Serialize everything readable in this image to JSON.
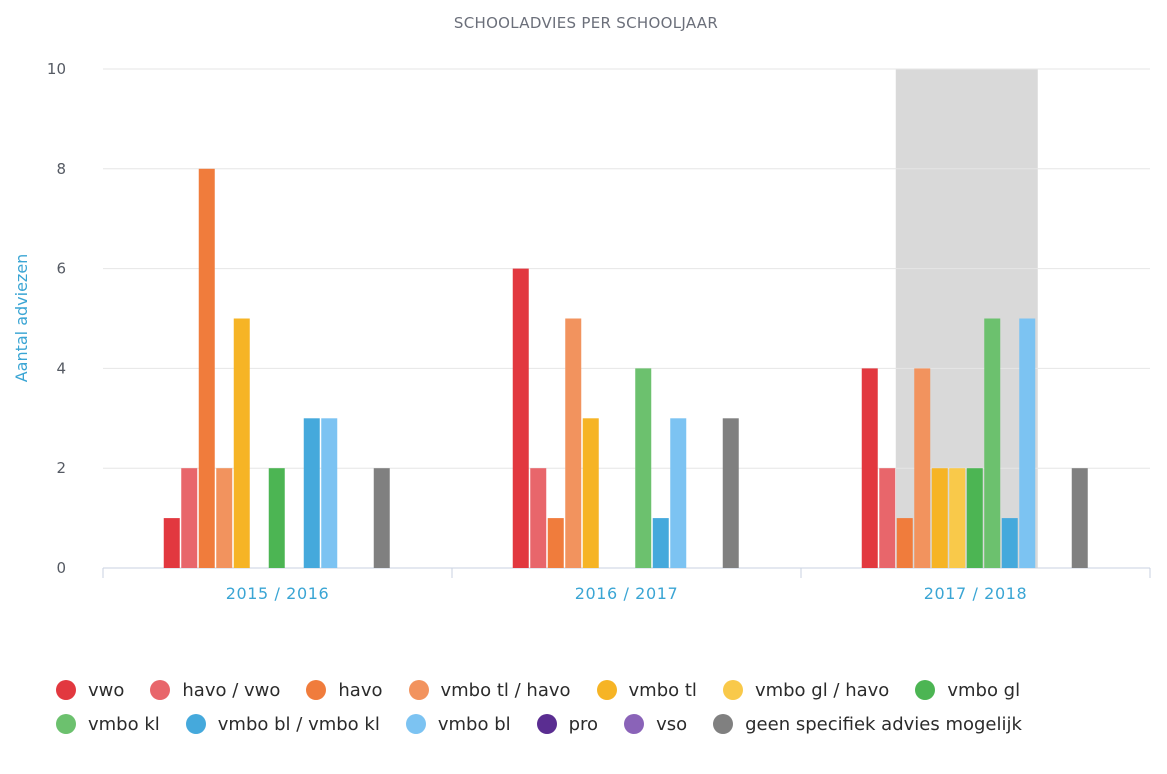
{
  "chart_data": {
    "type": "bar",
    "title": "SCHOOLADVIES PER SCHOOLJAAR",
    "xlabel": "",
    "ylabel": "Aantal adviezen",
    "ylim": [
      0,
      10
    ],
    "yticks": [
      "0",
      "2",
      "4",
      "6",
      "8",
      "10"
    ],
    "categories": [
      "2015 / 2016",
      "2016 / 2017",
      "2017 / 2018"
    ],
    "highlighted_category": "2017 / 2018",
    "highlight_color": "#d9d9d9",
    "grid": true,
    "legend_position": "bottom",
    "series": [
      {
        "name": "vwo",
        "color": "#e2383f",
        "values": [
          1,
          6,
          4
        ]
      },
      {
        "name": "havo / vwo",
        "color": "#e8666b",
        "values": [
          2,
          2,
          2
        ]
      },
      {
        "name": "havo",
        "color": "#f07c3c",
        "values": [
          8,
          1,
          1
        ]
      },
      {
        "name": "vmbo tl / havo",
        "color": "#f2935e",
        "values": [
          2,
          5,
          4
        ]
      },
      {
        "name": "vmbo tl",
        "color": "#f6b425",
        "values": [
          5,
          3,
          2
        ]
      },
      {
        "name": "vmbo gl / havo",
        "color": "#f9c94a",
        "values": [
          0,
          0,
          2
        ]
      },
      {
        "name": "vmbo gl",
        "color": "#4cb553",
        "values": [
          2,
          0,
          2
        ]
      },
      {
        "name": "vmbo kl",
        "color": "#6cc16e",
        "values": [
          0,
          4,
          5
        ]
      },
      {
        "name": "vmbo bl / vmbo kl",
        "color": "#45a9dc",
        "values": [
          3,
          1,
          1
        ]
      },
      {
        "name": "vmbo bl",
        "color": "#7cc3f2",
        "values": [
          3,
          3,
          5
        ]
      },
      {
        "name": "pro",
        "color": "#5a2d91",
        "values": [
          0,
          0,
          0
        ]
      },
      {
        "name": "vso",
        "color": "#8a63b8",
        "values": [
          0,
          0,
          0
        ]
      },
      {
        "name": "geen specifiek advies mogelijk",
        "color": "#808080",
        "values": [
          2,
          3,
          2
        ]
      }
    ]
  }
}
